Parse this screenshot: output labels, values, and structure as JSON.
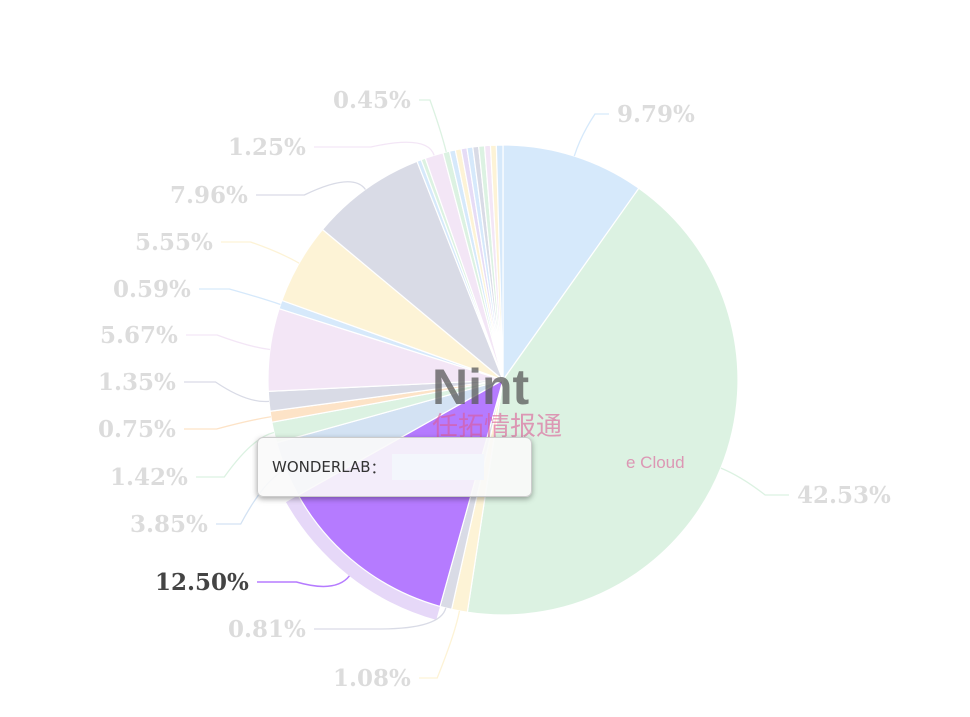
{
  "chart_data": {
    "type": "pie",
    "start": "top, clockwise",
    "slices": [
      {
        "value": 9.79,
        "label": "9.79%",
        "color": "#d6e9fb"
      },
      {
        "value": 42.53,
        "label": "42.53%",
        "color": "#dcf2e2"
      },
      {
        "value": 1.08,
        "label": "1.08%",
        "color": "#fdf3d6"
      },
      {
        "value": 0.81,
        "label": "0.81%",
        "color": "#d9dbe6"
      },
      {
        "value": 12.5,
        "label": "12.50%",
        "color": "#b57bff",
        "highlighted": true,
        "name": "WONDERLAB"
      },
      {
        "value": 3.85,
        "label": "3.85%",
        "color": "#d3e2f3"
      },
      {
        "value": 1.42,
        "label": "1.42%",
        "color": "#dcf2e2"
      },
      {
        "value": 0.75,
        "label": "0.75%",
        "color": "#fde3c7"
      },
      {
        "value": 1.35,
        "label": "1.35%",
        "color": "#d9dbe6"
      },
      {
        "value": 5.67,
        "label": "5.67%",
        "color": "#f3e6f6"
      },
      {
        "value": 0.59,
        "label": "0.59%",
        "color": "#d6e9fb"
      },
      {
        "value": 5.55,
        "label": "5.55%",
        "color": "#fdf3d6"
      },
      {
        "value": 7.96,
        "label": "7.96%",
        "color": "#d9dbe6"
      },
      {
        "value": 0.3,
        "color": "#d6e9fb"
      },
      {
        "value": 0.3,
        "color": "#dcf2e2"
      },
      {
        "value": 1.25,
        "label": "1.25%",
        "color": "#f3e6f6"
      },
      {
        "value": 0.45,
        "label": "0.45%",
        "color": "#dcf2e2"
      },
      {
        "value": 0.4,
        "color": "#d6e9fb"
      },
      {
        "value": 0.4,
        "color": "#fdf3d6"
      },
      {
        "value": 0.4,
        "color": "#e6dcf6"
      },
      {
        "value": 0.4,
        "color": "#d6e9fb"
      },
      {
        "value": 0.4,
        "color": "#d9dbe6"
      },
      {
        "value": 0.4,
        "color": "#dcf2e2"
      },
      {
        "value": 0.4,
        "color": "#f3e6f6"
      },
      {
        "value": 0.4,
        "color": "#fdf3d6"
      },
      {
        "value": 0.45,
        "color": "#d6e9fb"
      }
    ]
  },
  "tooltip": {
    "name": "WONDERLAB",
    "separator": "："
  },
  "watermark": {
    "brand": "Nint",
    "cn": "任拓情报通",
    "suffix": "e Cloud"
  }
}
